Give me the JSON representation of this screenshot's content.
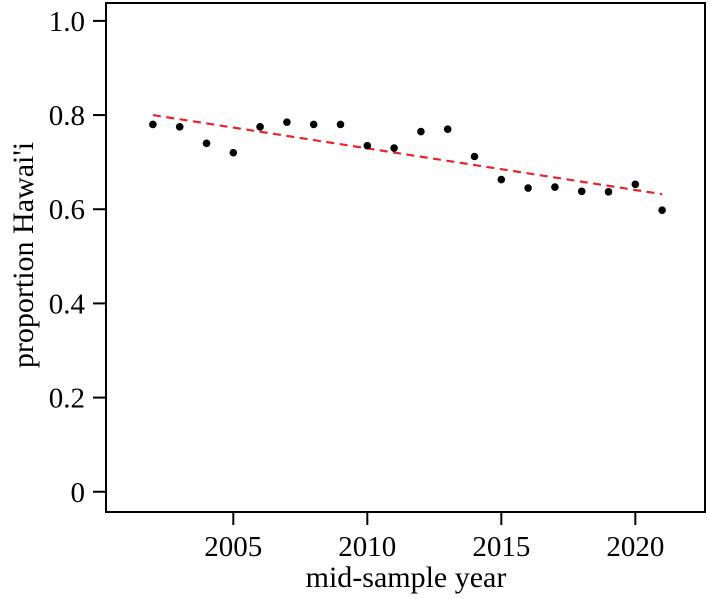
{
  "chart_data": {
    "type": "scatter",
    "title": "",
    "xlabel": "mid-sample year",
    "ylabel": "proportion Hawai'i",
    "x": [
      2002,
      2003,
      2004,
      2005,
      2006,
      2007,
      2008,
      2009,
      2010,
      2011,
      2012,
      2013,
      2014,
      2015,
      2016,
      2017,
      2018,
      2019,
      2020,
      2021
    ],
    "y": [
      0.78,
      0.775,
      0.74,
      0.72,
      0.775,
      0.785,
      0.78,
      0.78,
      0.735,
      0.73,
      0.765,
      0.77,
      0.712,
      0.663,
      0.645,
      0.647,
      0.638,
      0.637,
      0.653,
      0.598
    ],
    "xticks": {
      "values": [
        2005,
        2010,
        2015,
        2020
      ],
      "labels": [
        "2005",
        "2010",
        "2015",
        "2020"
      ]
    },
    "yticks": {
      "values": [
        0,
        0.2,
        0.4,
        0.6,
        0.8,
        1.0
      ],
      "labels": [
        "0",
        "0.2",
        "0.4",
        "0.6",
        "0.8",
        "1.0"
      ]
    },
    "xlim": [
      2000.25,
      2022.6
    ],
    "ylim": [
      -0.043,
      1.038
    ],
    "grid": false,
    "legend": null,
    "point_color": "#000000",
    "frame_color": "#000000",
    "background_color": "#ffffff",
    "trend_line": {
      "style": "dashed",
      "color": "#e8232b",
      "x": [
        2002,
        2021
      ],
      "y": [
        0.8,
        0.632
      ]
    }
  }
}
